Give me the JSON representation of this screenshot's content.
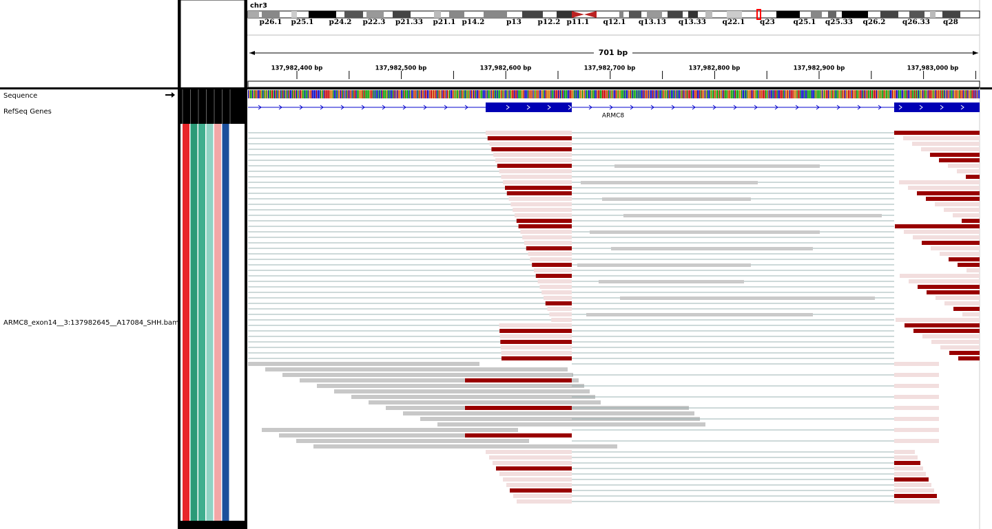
{
  "header": {
    "chromosome": "chr3"
  },
  "ideogram": {
    "bands": [
      "p26.1",
      "p25.1",
      "p24.2",
      "p22.3",
      "p21.33",
      "p21.1",
      "p14.2",
      "p13",
      "p12.2",
      "p11.1",
      "q12.1",
      "q13.13",
      "q13.33",
      "q22.1",
      "q23",
      "q25.1",
      "q25.33",
      "q26.2",
      "q26.33",
      "q28"
    ]
  },
  "ruler": {
    "span": "701 bp",
    "positions": [
      "137,982,400 bp",
      "137,982,500 bp",
      "137,982,600 bp",
      "137,982,700 bp",
      "137,982,800 bp",
      "137,982,900 bp",
      "137,983,000 bp"
    ]
  },
  "tracks": {
    "sequence": "Sequence",
    "refseq": "RefSeq Genes",
    "gene": "ARMC8",
    "bam": "ARMC8_exon14__3:137982645__A17084_SHH.bam"
  }
}
